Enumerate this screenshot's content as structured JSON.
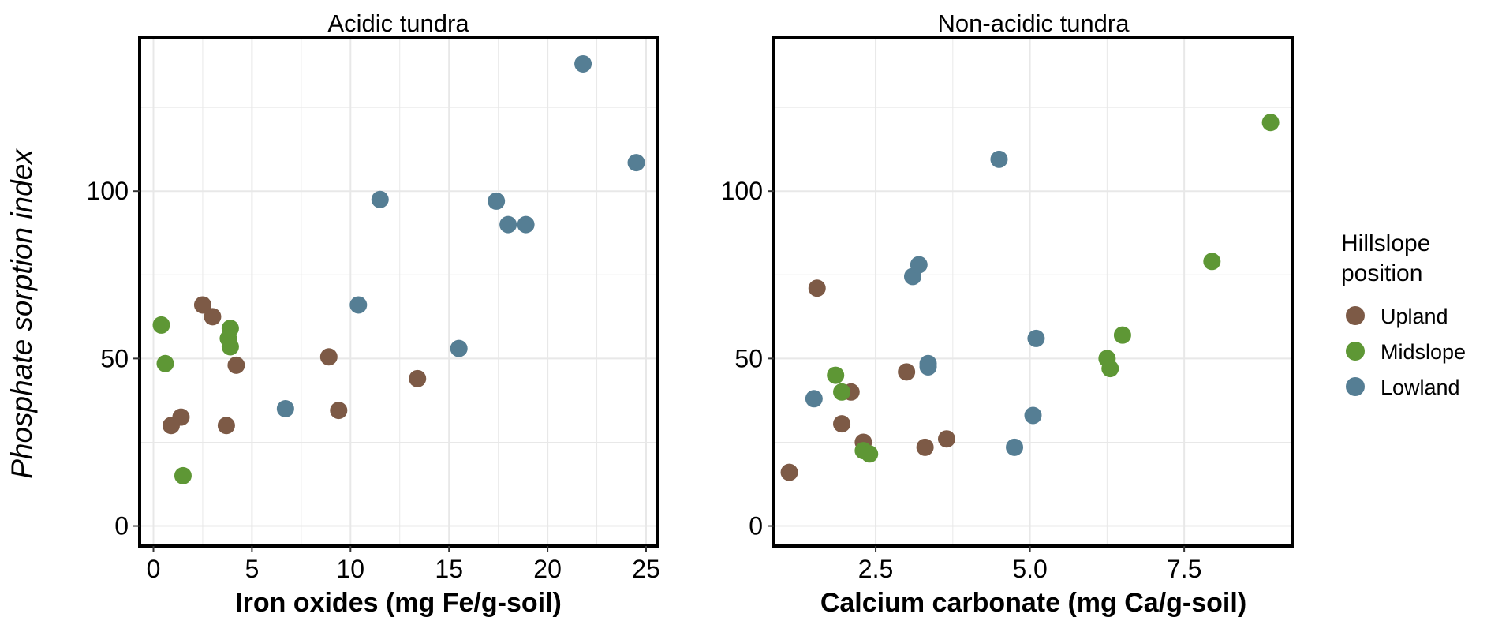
{
  "ylabel": "Phosphate sorption index",
  "legend": {
    "title_line1": "Hillslope",
    "title_line2": "position"
  },
  "colors": {
    "Upland": "#7d5a46",
    "Midslope": "#5e9735",
    "Lowland": "#557e94",
    "grid": "#e8e8e8",
    "frame": "#000000"
  },
  "chart_data": [
    {
      "type": "scatter",
      "title": "Acidic tundra",
      "xlabel": "Iron oxides (mg Fe/g-soil)",
      "ylabel": "Phosphate sorption index",
      "xlim": [
        -0.7,
        25.6
      ],
      "ylim": [
        -6,
        146
      ],
      "xticks": [
        0,
        5,
        10,
        15,
        20,
        25
      ],
      "xtick_labels": [
        "0",
        "5",
        "10",
        "15",
        "20",
        "25"
      ],
      "yticks": [
        0,
        50,
        100
      ],
      "ytick_labels": [
        "0",
        "50",
        "100"
      ],
      "grid": true,
      "legend_position": "right",
      "series": [
        {
          "name": "Upland",
          "points": [
            [
              2.5,
              66
            ],
            [
              3.0,
              62.5
            ],
            [
              4.2,
              48
            ],
            [
              8.9,
              50.5
            ],
            [
              9.4,
              34.5
            ],
            [
              13.4,
              44
            ],
            [
              0.9,
              30
            ],
            [
              1.4,
              32.5
            ],
            [
              3.7,
              30
            ]
          ]
        },
        {
          "name": "Midslope",
          "points": [
            [
              0.4,
              60
            ],
            [
              0.6,
              48.5
            ],
            [
              3.9,
              59
            ],
            [
              3.8,
              56
            ],
            [
              3.9,
              53.5
            ],
            [
              1.5,
              15
            ]
          ]
        },
        {
          "name": "Lowland",
          "points": [
            [
              11.5,
              97.5
            ],
            [
              10.4,
              66
            ],
            [
              6.7,
              35
            ],
            [
              15.5,
              53
            ],
            [
              17.4,
              97
            ],
            [
              18.0,
              90
            ],
            [
              18.9,
              90
            ],
            [
              21.8,
              138
            ],
            [
              24.5,
              108.5
            ]
          ]
        }
      ]
    },
    {
      "type": "scatter",
      "title": "Non-acidic tundra",
      "xlabel": "Calcium carbonate (mg Ca/g-soil)",
      "ylabel": "Phosphate sorption index",
      "xlim": [
        0.85,
        9.25
      ],
      "ylim": [
        -6,
        146
      ],
      "xticks": [
        2.5,
        5.0,
        7.5
      ],
      "xtick_labels": [
        "2.5",
        "5.0",
        "7.5"
      ],
      "yticks": [
        0,
        50,
        100
      ],
      "ytick_labels": [
        "0",
        "50",
        "100"
      ],
      "grid": true,
      "legend_position": "right",
      "series": [
        {
          "name": "Upland",
          "points": [
            [
              1.1,
              16
            ],
            [
              1.55,
              71
            ],
            [
              1.95,
              30.5
            ],
            [
              2.1,
              40
            ],
            [
              2.3,
              25
            ],
            [
              3.0,
              46
            ],
            [
              3.3,
              23.5
            ],
            [
              3.65,
              26
            ]
          ]
        },
        {
          "name": "Midslope",
          "points": [
            [
              1.85,
              45
            ],
            [
              1.95,
              40
            ],
            [
              2.3,
              22.5
            ],
            [
              2.4,
              21.5
            ],
            [
              6.25,
              50
            ],
            [
              6.3,
              47
            ],
            [
              6.5,
              57
            ],
            [
              7.95,
              79
            ],
            [
              8.9,
              120.5
            ]
          ]
        },
        {
          "name": "Lowland",
          "points": [
            [
              1.5,
              38
            ],
            [
              3.1,
              74.5
            ],
            [
              3.2,
              78
            ],
            [
              3.35,
              47.5
            ],
            [
              3.35,
              48.5
            ],
            [
              4.5,
              109.5
            ],
            [
              4.75,
              23.5
            ],
            [
              5.05,
              33
            ],
            [
              5.1,
              56
            ]
          ]
        }
      ]
    }
  ]
}
